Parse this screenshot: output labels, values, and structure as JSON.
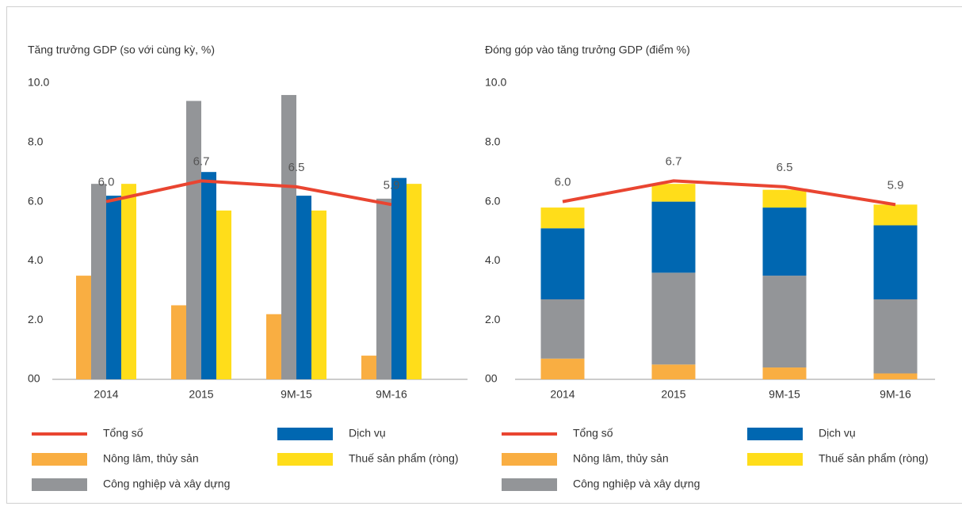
{
  "chart_data": [
    {
      "type": "bar",
      "title": "Tăng trưởng GDP (so với cùng kỳ, %)",
      "categories": [
        "2014",
        "2015",
        "9M-15",
        "9M-16"
      ],
      "series": [
        {
          "name": "Tổng số",
          "type": "line",
          "color": "#e94531",
          "values": [
            6.0,
            6.7,
            6.5,
            5.9
          ],
          "value_labels": [
            "6.0",
            "6.7",
            "6.5",
            "5.9"
          ]
        },
        {
          "name": "Nông lâm, thủy sản",
          "color": "#f9ae42",
          "values": [
            3.5,
            2.5,
            2.2,
            0.8
          ]
        },
        {
          "name": "Công nghiệp và xây dựng",
          "color": "#939598",
          "values": [
            6.6,
            9.4,
            9.6,
            6.1
          ]
        },
        {
          "name": "Dịch vụ",
          "color": "#0067b1",
          "values": [
            6.2,
            7.0,
            6.2,
            6.8
          ]
        },
        {
          "name": "Thuế sản phẩm (ròng)",
          "color": "#ffdd1a",
          "values": [
            6.6,
            5.7,
            5.7,
            6.6
          ]
        }
      ],
      "ylim": [
        0,
        10
      ],
      "yticks": [
        {
          "value": 0,
          "label": "00"
        },
        {
          "value": 2,
          "label": "2.0"
        },
        {
          "value": 4,
          "label": "4.0"
        },
        {
          "value": 6,
          "label": "6.0"
        },
        {
          "value": 8,
          "label": "8.0"
        },
        {
          "value": 10,
          "label": "10.0"
        }
      ]
    },
    {
      "type": "stacked_bar",
      "title": "Đóng góp vào tăng trưởng GDP (điểm %)",
      "categories": [
        "2014",
        "2015",
        "9M-15",
        "9M-16"
      ],
      "series": [
        {
          "name": "Tổng số",
          "type": "line",
          "color": "#e94531",
          "values": [
            6.0,
            6.7,
            6.5,
            5.9
          ],
          "value_labels": [
            "6.0",
            "6.7",
            "6.5",
            "5.9"
          ]
        },
        {
          "name": "Nông lâm, thủy sản",
          "color": "#f9ae42",
          "values": [
            0.7,
            0.5,
            0.4,
            0.2
          ]
        },
        {
          "name": "Công nghiệp và xây dựng",
          "color": "#939598",
          "values": [
            2.0,
            3.1,
            3.1,
            2.5
          ]
        },
        {
          "name": "Dịch vụ",
          "color": "#0067b1",
          "values": [
            2.4,
            2.4,
            2.3,
            2.5
          ]
        },
        {
          "name": "Thuế sản phẩm (ròng)",
          "color": "#ffdd1a",
          "values": [
            0.7,
            0.6,
            0.6,
            0.7
          ]
        }
      ],
      "ylim": [
        0,
        10
      ],
      "yticks": [
        {
          "value": 0,
          "label": "00"
        },
        {
          "value": 2,
          "label": "2.0"
        },
        {
          "value": 4,
          "label": "4.0"
        },
        {
          "value": 6,
          "label": "6.0"
        },
        {
          "value": 8,
          "label": "8.0"
        },
        {
          "value": 10,
          "label": "10.0"
        }
      ]
    }
  ]
}
